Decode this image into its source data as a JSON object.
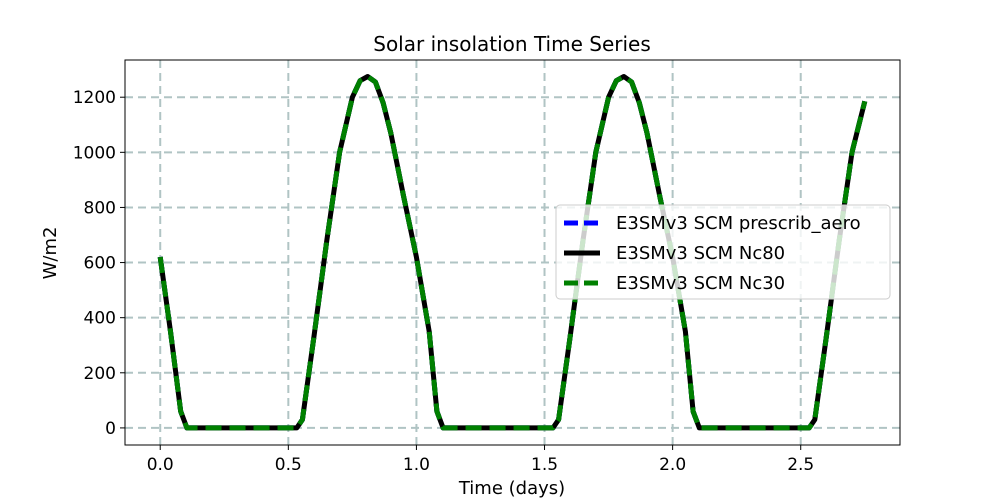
{
  "chart_data": {
    "type": "line",
    "title": "Solar insolation Time Series",
    "xlabel": "Time (days)",
    "ylabel": "W/m2",
    "xlim": [
      -0.1375,
      2.8875
    ],
    "ylim": [
      -62,
      1335
    ],
    "xticks": [
      0.0,
      0.5,
      1.0,
      1.5,
      2.0,
      2.5
    ],
    "xtick_labels": [
      "0.0",
      "0.5",
      "1.0",
      "1.5",
      "2.0",
      "2.5"
    ],
    "yticks": [
      0,
      200,
      400,
      600,
      800,
      1000,
      1200
    ],
    "ytick_labels": [
      "0",
      "200",
      "400",
      "600",
      "800",
      "1000",
      "1200"
    ],
    "grid": true,
    "legend_position": "center-right",
    "series": [
      {
        "name": "E3SMv3 SCM prescrib_aero",
        "color": "#0000ff",
        "style": "dashed",
        "x": [
          0.0,
          0.04,
          0.08,
          0.104,
          0.2,
          0.3,
          0.4,
          0.5,
          0.533,
          0.555,
          0.6,
          0.65,
          0.7,
          0.75,
          0.78,
          0.81,
          0.84,
          0.87,
          0.9,
          0.95,
          1.0,
          1.05,
          1.08,
          1.104,
          1.2,
          1.3,
          1.4,
          1.5,
          1.533,
          1.555,
          1.6,
          1.65,
          1.7,
          1.75,
          1.78,
          1.81,
          1.84,
          1.87,
          1.9,
          1.95,
          2.0,
          2.05,
          2.08,
          2.104,
          2.2,
          2.3,
          2.4,
          2.5,
          2.533,
          2.555,
          2.6,
          2.65,
          2.7,
          2.75
        ],
        "y": [
          620,
          350,
          60,
          0,
          0,
          0,
          0,
          0,
          0,
          30,
          330,
          680,
          1000,
          1200,
          1260,
          1275,
          1255,
          1180,
          1070,
          840,
          620,
          350,
          60,
          0,
          0,
          0,
          0,
          0,
          0,
          30,
          330,
          680,
          1000,
          1200,
          1260,
          1275,
          1255,
          1180,
          1070,
          840,
          620,
          350,
          60,
          0,
          0,
          0,
          0,
          0,
          0,
          30,
          330,
          680,
          1000,
          1185
        ]
      },
      {
        "name": "E3SMv3 SCM Nc80",
        "color": "#000000",
        "style": "solid",
        "x": [
          0.0,
          0.04,
          0.08,
          0.104,
          0.2,
          0.3,
          0.4,
          0.5,
          0.533,
          0.555,
          0.6,
          0.65,
          0.7,
          0.75,
          0.78,
          0.81,
          0.84,
          0.87,
          0.9,
          0.95,
          1.0,
          1.05,
          1.08,
          1.104,
          1.2,
          1.3,
          1.4,
          1.5,
          1.533,
          1.555,
          1.6,
          1.65,
          1.7,
          1.75,
          1.78,
          1.81,
          1.84,
          1.87,
          1.9,
          1.95,
          2.0,
          2.05,
          2.08,
          2.104,
          2.2,
          2.3,
          2.4,
          2.5,
          2.533,
          2.555,
          2.6,
          2.65,
          2.7,
          2.75
        ],
        "y": [
          620,
          350,
          60,
          0,
          0,
          0,
          0,
          0,
          0,
          30,
          330,
          680,
          1000,
          1200,
          1260,
          1275,
          1255,
          1180,
          1070,
          840,
          620,
          350,
          60,
          0,
          0,
          0,
          0,
          0,
          0,
          30,
          330,
          680,
          1000,
          1200,
          1260,
          1275,
          1255,
          1180,
          1070,
          840,
          620,
          350,
          60,
          0,
          0,
          0,
          0,
          0,
          0,
          30,
          330,
          680,
          1000,
          1185
        ]
      },
      {
        "name": "E3SMv3 SCM Nc30",
        "color": "#008000",
        "style": "dashed",
        "x": [
          0.0,
          0.04,
          0.08,
          0.104,
          0.2,
          0.3,
          0.4,
          0.5,
          0.533,
          0.555,
          0.6,
          0.65,
          0.7,
          0.75,
          0.78,
          0.81,
          0.84,
          0.87,
          0.9,
          0.95,
          1.0,
          1.05,
          1.08,
          1.104,
          1.2,
          1.3,
          1.4,
          1.5,
          1.533,
          1.555,
          1.6,
          1.65,
          1.7,
          1.75,
          1.78,
          1.81,
          1.84,
          1.87,
          1.9,
          1.95,
          2.0,
          2.05,
          2.08,
          2.104,
          2.2,
          2.3,
          2.4,
          2.5,
          2.533,
          2.555,
          2.6,
          2.65,
          2.7,
          2.75
        ],
        "y": [
          620,
          350,
          60,
          0,
          0,
          0,
          0,
          0,
          0,
          30,
          330,
          680,
          1000,
          1200,
          1260,
          1275,
          1255,
          1180,
          1070,
          840,
          620,
          350,
          60,
          0,
          0,
          0,
          0,
          0,
          0,
          30,
          330,
          680,
          1000,
          1200,
          1260,
          1275,
          1255,
          1180,
          1070,
          840,
          620,
          350,
          60,
          0,
          0,
          0,
          0,
          0,
          0,
          30,
          330,
          680,
          1000,
          1185
        ]
      }
    ]
  }
}
